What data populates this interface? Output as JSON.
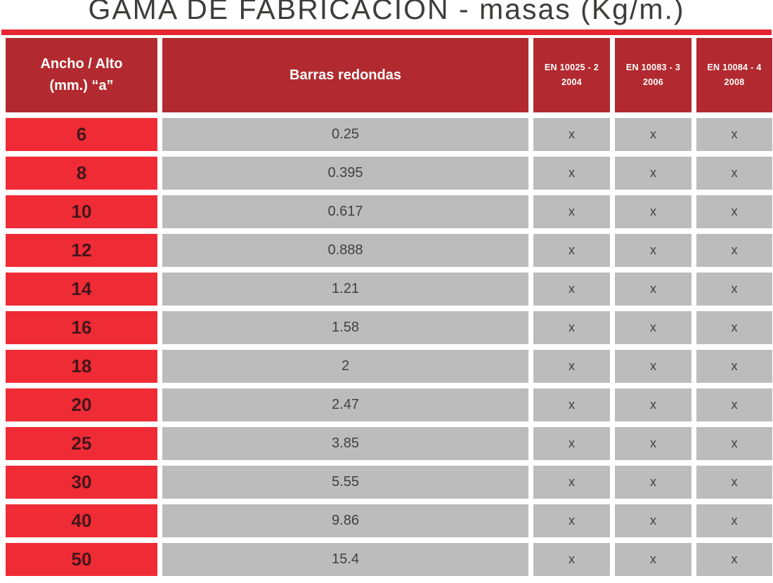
{
  "title": "GAMA DE FABRICACIÓN - masas (Kg/m.)",
  "colors": {
    "header_red": "#b22a2f",
    "row_red": "#ef2b35",
    "cell_gray": "#bdbcbc",
    "accent_bar": "#e62630",
    "title_text": "#3d3d3c",
    "dark_text": "#414042",
    "size_text": "#43161a"
  },
  "table": {
    "headers": {
      "size_line1": "Ancho / Alto",
      "size_line2": "(mm.) “a”",
      "product": "Barras redondas",
      "en1_line1": "EN 10025 - 2",
      "en1_line2": "2004",
      "en2_line1": "EN 10083 - 3",
      "en2_line2": "2006",
      "en3_line1": "EN 10084 - 4",
      "en3_line2": "2008"
    },
    "rows": [
      {
        "size": "6",
        "mass": "0.25",
        "en1": "x",
        "en2": "x",
        "en3": "x"
      },
      {
        "size": "8",
        "mass": "0.395",
        "en1": "x",
        "en2": "x",
        "en3": "x"
      },
      {
        "size": "10",
        "mass": "0.617",
        "en1": "x",
        "en2": "x",
        "en3": "x"
      },
      {
        "size": "12",
        "mass": "0.888",
        "en1": "x",
        "en2": "x",
        "en3": "x"
      },
      {
        "size": "14",
        "mass": "1.21",
        "en1": "x",
        "en2": "x",
        "en3": "x"
      },
      {
        "size": "16",
        "mass": "1.58",
        "en1": "x",
        "en2": "x",
        "en3": "x"
      },
      {
        "size": "18",
        "mass": "2",
        "en1": "x",
        "en2": "x",
        "en3": "x"
      },
      {
        "size": "20",
        "mass": "2.47",
        "en1": "x",
        "en2": "x",
        "en3": "x"
      },
      {
        "size": "25",
        "mass": "3.85",
        "en1": "x",
        "en2": "x",
        "en3": "x"
      },
      {
        "size": "30",
        "mass": "5.55",
        "en1": "x",
        "en2": "x",
        "en3": "x"
      },
      {
        "size": "40",
        "mass": "9.86",
        "en1": "x",
        "en2": "x",
        "en3": "x"
      },
      {
        "size": "50",
        "mass": "15.4",
        "en1": "x",
        "en2": "x",
        "en3": "x"
      }
    ]
  }
}
